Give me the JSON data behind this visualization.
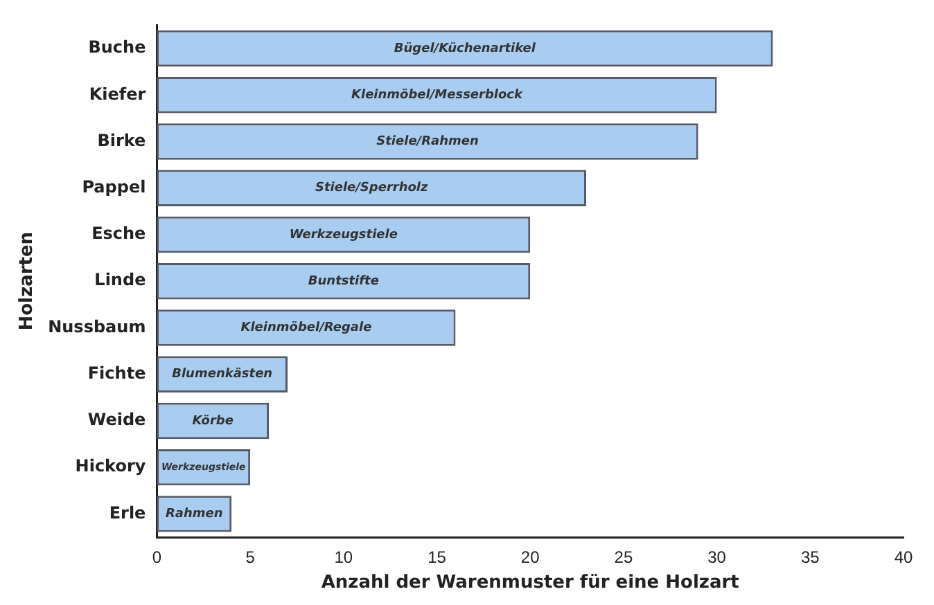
{
  "chart_data": {
    "type": "bar",
    "orientation": "horizontal",
    "xlabel": "Anzahl der Warenmuster für eine Holzart",
    "ylabel": "Holzarten",
    "categories": [
      "Buche",
      "Kiefer",
      "Birke",
      "Pappel",
      "Esche",
      "Linde",
      "Nussbaum",
      "Fichte",
      "Weide",
      "Hickory",
      "Erle"
    ],
    "values": [
      33,
      30,
      29,
      23,
      20,
      20,
      16,
      7,
      6,
      5,
      4
    ],
    "color": "#a9cdf0",
    "xlim": [
      0,
      40
    ],
    "xticks": [
      0,
      5,
      10,
      15,
      20,
      25,
      30,
      35,
      40
    ],
    "grid": false,
    "legend": false,
    "annotations": [
      {
        "text": "Bügel/Küchenartikel",
        "x": 16.5,
        "y": "Buche"
      },
      {
        "text": "Kleinmöbel/Messerblock",
        "x": 15,
        "y": "Kiefer"
      },
      {
        "text": "Stiele/Rahmen",
        "x": 14.5,
        "y": "Birke"
      },
      {
        "text": "Stiele/Sperrholz",
        "x": 11.5,
        "y": "Pappel"
      },
      {
        "text": "Werkzeugstiele",
        "x": 10,
        "y": "Esche"
      },
      {
        "text": "Buntstifte",
        "x": 10,
        "y": "Linde"
      },
      {
        "text": "Kleinmöbel/Regale",
        "x": 8,
        "y": "Nussbaum"
      },
      {
        "text": "Blumenkästen",
        "x": 3.5,
        "y": "Fichte"
      },
      {
        "text": "Körbe",
        "x": 3,
        "y": "Weide"
      },
      {
        "text": "Werkzeugstiele",
        "x": 2.5,
        "y": "Hickory"
      },
      {
        "text": "Rahmen",
        "x": 2,
        "y": "Erle"
      }
    ]
  }
}
